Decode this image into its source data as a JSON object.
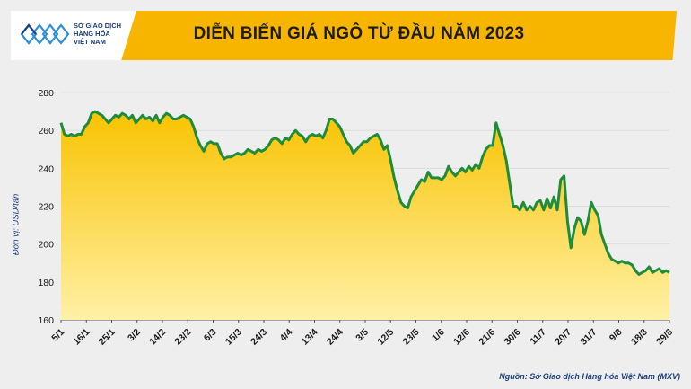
{
  "logo": {
    "lines": [
      "SỞ GIAO DỊCH",
      "HÀNG HÓA",
      "VIỆT NAM"
    ]
  },
  "header": {
    "title": "DIỄN BIẾN GIÁ NGÔ TỪ ĐẦU NĂM 2023"
  },
  "footer": {
    "source": "Nguồn: Sở Giao dịch Hàng hóa Việt Nam (MXV)"
  },
  "colors": {
    "banner": "#f7b500",
    "line": "#1e8c3a",
    "area_top": "#f9c300",
    "area_bottom": "#fff0a6",
    "brand": "#1a3e7a"
  },
  "chart_data": {
    "type": "area",
    "title": "DIỄN BIẾN GIÁ NGÔ TỪ ĐẦU NĂM 2023",
    "ylabel": "Đơn vị: USD/tấn",
    "ylim": [
      160,
      280
    ],
    "yticks": [
      160,
      180,
      200,
      220,
      240,
      260,
      280
    ],
    "grid": true,
    "xtick_labels": [
      "5/1",
      "16/1",
      "25/1",
      "3/2",
      "14/2",
      "23/2",
      "6/3",
      "15/3",
      "24/3",
      "4/4",
      "13/4",
      "24/4",
      "3/5",
      "12/5",
      "23/5",
      "1/6",
      "12/6",
      "21/6",
      "30/6",
      "11/7",
      "20/7",
      "31/7",
      "9/8",
      "18/8",
      "29/8"
    ],
    "series": [
      {
        "values": [
          264,
          258,
          257,
          258,
          257,
          258,
          258,
          262,
          264,
          269,
          270,
          269,
          268,
          266,
          264,
          266,
          268,
          267,
          269,
          268,
          266,
          268,
          264,
          266,
          268,
          266,
          267,
          265,
          268,
          264,
          267,
          269,
          268,
          266,
          266,
          267,
          268,
          267,
          266,
          262,
          256,
          252,
          249,
          253,
          254,
          253,
          253,
          248,
          245,
          246,
          246,
          247,
          248,
          247,
          248,
          250,
          249,
          248,
          250,
          249,
          250,
          252,
          255,
          256,
          255,
          253,
          256,
          255,
          258,
          260,
          258,
          257,
          254,
          257,
          258,
          257,
          258,
          256,
          260,
          266,
          266,
          264,
          262,
          258,
          254,
          252,
          248,
          250,
          252,
          254,
          254,
          256,
          257,
          258,
          255,
          250,
          252,
          244,
          235,
          228,
          222,
          220,
          219,
          225,
          228,
          231,
          234,
          233,
          238,
          235,
          235,
          235,
          234,
          236,
          241,
          238,
          236,
          238,
          240,
          238,
          241,
          239,
          242,
          240,
          246,
          250,
          252,
          252,
          264,
          258,
          252,
          244,
          232,
          220,
          220,
          218,
          222,
          218,
          220,
          218,
          222,
          223,
          218,
          224,
          219,
          225,
          218,
          234,
          236,
          212,
          198,
          208,
          214,
          212,
          205,
          212,
          222,
          218,
          215,
          205,
          200,
          195,
          192,
          191,
          190,
          191,
          190,
          190,
          189,
          186,
          184,
          185,
          186,
          188,
          185,
          186,
          187,
          185,
          186,
          185
        ]
      }
    ]
  }
}
